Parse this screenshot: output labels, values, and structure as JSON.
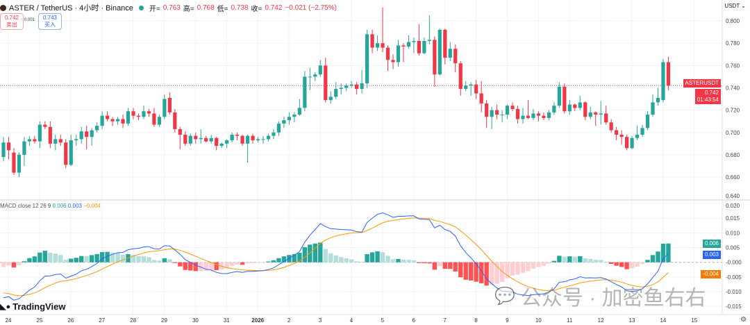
{
  "header": {
    "symbol": "ASTER / TetherUS · 4小时 · Binance",
    "open_label": "开=",
    "open": "0.763",
    "high_label": "高=",
    "high": "0.768",
    "low_label": "低=",
    "low": "0.738",
    "close_label": "收=",
    "close": "0.742",
    "change": "−0.021 (−2.75%)"
  },
  "trade": {
    "sell_price": "0.742",
    "sell_label": "卖出",
    "spread": "0.001",
    "buy_price": "0.743",
    "buy_label": "买入"
  },
  "axis_currency": "USDT",
  "price_badge": {
    "symbol": "ASTERUSDT",
    "price": "0.742",
    "countdown": "01:43:54"
  },
  "macd_header": {
    "label": "MACD close 12 26 9",
    "hist": "0.006",
    "macd": "0.003",
    "signal": "−0.004"
  },
  "macd_badges": {
    "hist": "0.006",
    "macd": "0.003",
    "signal": "-0.004"
  },
  "watermark": "公众号 · 加密鱼右右",
  "logo": "TradingView",
  "colors": {
    "up": "#26a69a",
    "down": "#f23645",
    "macd": "#2962ff",
    "signal": "#ff9800",
    "hist_up": "#26a69a",
    "hist_up_fade": "#b2dfdb",
    "hist_down": "#ff5252",
    "hist_down_fade": "#ffcdd2"
  },
  "chart_data": {
    "type": "candlestick",
    "interval": "4h",
    "price_ticks": [
      "0.800",
      "0.780",
      "0.760",
      "0.740",
      "0.720",
      "0.700",
      "0.680",
      "0.660",
      "0.640"
    ],
    "price_ylim": [
      0.6395,
      0.8187
    ],
    "macd_ticks": [
      "0.020",
      "0.015",
      "0.010",
      "0.005",
      "-0.000",
      "-0.005",
      "-0.010",
      "-0.015"
    ],
    "macd_ylim": [
      -0.0178,
      0.0212
    ],
    "x_labels": [
      "24",
      "25",
      "26",
      "27",
      "28",
      "29",
      "30",
      "31",
      "2026",
      "2",
      "3",
      "4",
      "5",
      "6",
      "7",
      "8",
      "9",
      "10",
      "11",
      "12",
      "13",
      "14",
      "15"
    ],
    "macd_params": [
      12,
      26,
      9
    ],
    "macd_seed": {
      "ema12_offset": 0.0,
      "ema26_offset": 0.013,
      "signal": -0.01
    },
    "candles_ohlc": [
      [
        0.678,
        0.696,
        0.674,
        0.691
      ],
      [
        0.691,
        0.696,
        0.676,
        0.684
      ],
      [
        0.682,
        0.686,
        0.662,
        0.664
      ],
      [
        0.664,
        0.682,
        0.66,
        0.68
      ],
      [
        0.68,
        0.696,
        0.67,
        0.692
      ],
      [
        0.692,
        0.697,
        0.688,
        0.694
      ],
      [
        0.694,
        0.697,
        0.69,
        0.692
      ],
      [
        0.692,
        0.71,
        0.686,
        0.707
      ],
      [
        0.707,
        0.71,
        0.703,
        0.705
      ],
      [
        0.705,
        0.71,
        0.686,
        0.69
      ],
      [
        0.69,
        0.698,
        0.684,
        0.694
      ],
      [
        0.694,
        0.698,
        0.688,
        0.691
      ],
      [
        0.691,
        0.694,
        0.668,
        0.671
      ],
      [
        0.671,
        0.698,
        0.67,
        0.693
      ],
      [
        0.693,
        0.698,
        0.688,
        0.694
      ],
      [
        0.694,
        0.705,
        0.69,
        0.701
      ],
      [
        0.701,
        0.706,
        0.685,
        0.696
      ],
      [
        0.696,
        0.704,
        0.688,
        0.702
      ],
      [
        0.702,
        0.709,
        0.7,
        0.706
      ],
      [
        0.706,
        0.719,
        0.703,
        0.715
      ],
      [
        0.715,
        0.719,
        0.71,
        0.712
      ],
      [
        0.712,
        0.714,
        0.706,
        0.71
      ],
      [
        0.71,
        0.714,
        0.707,
        0.712
      ],
      [
        0.712,
        0.716,
        0.704,
        0.708
      ],
      [
        0.708,
        0.722,
        0.706,
        0.719
      ],
      [
        0.719,
        0.722,
        0.712,
        0.715
      ],
      [
        0.715,
        0.717,
        0.711,
        0.714
      ],
      [
        0.714,
        0.724,
        0.712,
        0.719
      ],
      [
        0.719,
        0.721,
        0.714,
        0.717
      ],
      [
        0.717,
        0.722,
        0.705,
        0.707
      ],
      [
        0.707,
        0.716,
        0.705,
        0.714
      ],
      [
        0.714,
        0.734,
        0.712,
        0.73
      ],
      [
        0.731,
        0.736,
        0.716,
        0.718
      ],
      [
        0.718,
        0.721,
        0.7,
        0.703
      ],
      [
        0.703,
        0.705,
        0.685,
        0.698
      ],
      [
        0.698,
        0.701,
        0.688,
        0.69
      ],
      [
        0.69,
        0.699,
        0.688,
        0.697
      ],
      [
        0.697,
        0.7,
        0.69,
        0.694
      ],
      [
        0.694,
        0.703,
        0.69,
        0.695
      ],
      [
        0.695,
        0.697,
        0.691,
        0.692
      ],
      [
        0.692,
        0.698,
        0.69,
        0.695
      ],
      [
        0.695,
        0.696,
        0.684,
        0.688
      ],
      [
        0.688,
        0.691,
        0.686,
        0.69
      ],
      [
        0.69,
        0.694,
        0.686,
        0.693
      ],
      [
        0.693,
        0.7,
        0.691,
        0.698
      ],
      [
        0.698,
        0.7,
        0.693,
        0.697
      ],
      [
        0.697,
        0.698,
        0.688,
        0.69
      ],
      [
        0.69,
        0.698,
        0.673,
        0.697
      ],
      [
        0.697,
        0.699,
        0.69,
        0.693
      ],
      [
        0.693,
        0.696,
        0.691,
        0.694
      ],
      [
        0.694,
        0.697,
        0.69,
        0.694
      ],
      [
        0.694,
        0.699,
        0.692,
        0.697
      ],
      [
        0.697,
        0.703,
        0.694,
        0.7
      ],
      [
        0.7,
        0.71,
        0.697,
        0.708
      ],
      [
        0.708,
        0.714,
        0.704,
        0.711
      ],
      [
        0.711,
        0.718,
        0.707,
        0.714
      ],
      [
        0.714,
        0.718,
        0.709,
        0.716
      ],
      [
        0.716,
        0.73,
        0.715,
        0.722
      ],
      [
        0.722,
        0.755,
        0.719,
        0.75
      ],
      [
        0.75,
        0.758,
        0.738,
        0.75
      ],
      [
        0.75,
        0.754,
        0.746,
        0.752
      ],
      [
        0.752,
        0.765,
        0.75,
        0.76
      ],
      [
        0.76,
        0.767,
        0.727,
        0.729
      ],
      [
        0.729,
        0.737,
        0.726,
        0.732
      ],
      [
        0.732,
        0.745,
        0.73,
        0.739
      ],
      [
        0.739,
        0.744,
        0.734,
        0.74
      ],
      [
        0.74,
        0.744,
        0.737,
        0.742
      ],
      [
        0.742,
        0.746,
        0.74,
        0.743
      ],
      [
        0.743,
        0.745,
        0.734,
        0.739
      ],
      [
        0.739,
        0.756,
        0.735,
        0.744
      ],
      [
        0.744,
        0.792,
        0.74,
        0.788
      ],
      [
        0.788,
        0.792,
        0.771,
        0.776
      ],
      [
        0.776,
        0.787,
        0.773,
        0.78
      ],
      [
        0.78,
        0.812,
        0.772,
        0.776
      ],
      [
        0.776,
        0.778,
        0.755,
        0.765
      ],
      [
        0.765,
        0.77,
        0.757,
        0.763
      ],
      [
        0.763,
        0.783,
        0.759,
        0.778
      ],
      [
        0.778,
        0.78,
        0.763,
        0.777
      ],
      [
        0.777,
        0.787,
        0.775,
        0.781
      ],
      [
        0.781,
        0.785,
        0.771,
        0.782
      ],
      [
        0.782,
        0.797,
        0.769,
        0.771
      ],
      [
        0.771,
        0.785,
        0.77,
        0.782
      ],
      [
        0.782,
        0.805,
        0.779,
        0.783
      ],
      [
        0.783,
        0.786,
        0.741,
        0.752
      ],
      [
        0.752,
        0.793,
        0.751,
        0.792
      ],
      [
        0.792,
        0.793,
        0.761,
        0.767
      ],
      [
        0.767,
        0.781,
        0.764,
        0.775
      ],
      [
        0.775,
        0.779,
        0.754,
        0.762
      ],
      [
        0.762,
        0.764,
        0.733,
        0.739
      ],
      [
        0.739,
        0.746,
        0.737,
        0.742
      ],
      [
        0.742,
        0.745,
        0.733,
        0.743
      ],
      [
        0.743,
        0.747,
        0.73,
        0.735
      ],
      [
        0.735,
        0.746,
        0.718,
        0.726
      ],
      [
        0.726,
        0.729,
        0.704,
        0.714
      ],
      [
        0.714,
        0.723,
        0.703,
        0.72
      ],
      [
        0.72,
        0.725,
        0.712,
        0.716
      ],
      [
        0.716,
        0.72,
        0.709,
        0.716
      ],
      [
        0.716,
        0.725,
        0.712,
        0.724
      ],
      [
        0.724,
        0.727,
        0.719,
        0.721
      ],
      [
        0.721,
        0.724,
        0.708,
        0.712
      ],
      [
        0.712,
        0.722,
        0.708,
        0.715
      ],
      [
        0.715,
        0.729,
        0.712,
        0.713
      ],
      [
        0.713,
        0.721,
        0.711,
        0.717
      ],
      [
        0.717,
        0.719,
        0.71,
        0.715
      ],
      [
        0.715,
        0.718,
        0.711,
        0.713
      ],
      [
        0.713,
        0.72,
        0.711,
        0.718
      ],
      [
        0.718,
        0.727,
        0.716,
        0.724
      ],
      [
        0.724,
        0.745,
        0.722,
        0.741
      ],
      [
        0.741,
        0.744,
        0.717,
        0.719
      ],
      [
        0.719,
        0.729,
        0.716,
        0.725
      ],
      [
        0.725,
        0.726,
        0.719,
        0.722
      ],
      [
        0.722,
        0.733,
        0.72,
        0.727
      ],
      [
        0.727,
        0.728,
        0.711,
        0.714
      ],
      [
        0.714,
        0.723,
        0.712,
        0.718
      ],
      [
        0.718,
        0.719,
        0.706,
        0.716
      ],
      [
        0.716,
        0.728,
        0.707,
        0.717
      ],
      [
        0.717,
        0.724,
        0.707,
        0.709
      ],
      [
        0.709,
        0.712,
        0.7,
        0.702
      ],
      [
        0.702,
        0.705,
        0.693,
        0.698
      ],
      [
        0.698,
        0.702,
        0.689,
        0.696
      ],
      [
        0.696,
        0.698,
        0.684,
        0.686
      ],
      [
        0.686,
        0.697,
        0.685,
        0.695
      ],
      [
        0.695,
        0.706,
        0.693,
        0.698
      ],
      [
        0.698,
        0.707,
        0.696,
        0.704
      ],
      [
        0.704,
        0.719,
        0.702,
        0.716
      ],
      [
        0.716,
        0.734,
        0.714,
        0.727
      ],
      [
        0.727,
        0.74,
        0.724,
        0.731
      ],
      [
        0.729,
        0.766,
        0.727,
        0.763
      ],
      [
        0.763,
        0.768,
        0.738,
        0.742
      ]
    ],
    "last_price": 0.742
  }
}
